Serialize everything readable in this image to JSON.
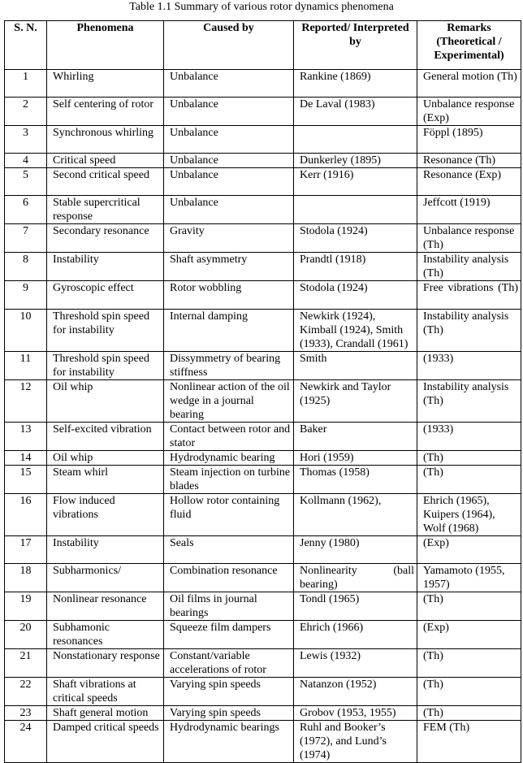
{
  "title": "Table 1.1 Summary of various rotor dynamics phenomena",
  "headers": [
    "S. N.",
    "Phenomena",
    "Caused by",
    "Reported/ Interpreted by",
    "Remarks (Theoretical / Experimental)"
  ],
  "rows": [
    [
      "1",
      "Whirling",
      "Unbalance",
      "Rankine (1869)",
      "General motion (Th)"
    ],
    [
      "2",
      "Self centering of rotor",
      "Unbalance",
      "De Laval (1983)",
      "Unbalance response (Exp)"
    ],
    [
      "3",
      "Synchronous whirling",
      "Unbalance",
      "",
      "Föppl (1895)"
    ],
    [
      "4",
      "Critical speed",
      "Unbalance",
      "Dunkerley (1895)",
      "Resonance (Th)"
    ],
    [
      "5",
      "Second critical speed",
      "Unbalance",
      "Kerr (1916)",
      "Resonance (Exp)"
    ],
    [
      "6",
      "Stable supercritical response",
      "Unbalance",
      "",
      "Jeffcott (1919)"
    ],
    [
      "7",
      "Secondary resonance",
      "Gravity",
      "Stodola (1924)",
      "Unbalance response (Th)"
    ],
    [
      "8",
      "Instability",
      "Shaft asymmetry",
      "Prandtl (1918)",
      "Instability analysis (Th)"
    ],
    [
      "9",
      "Gyroscopic effect",
      "Rotor wobbling",
      "Stodola (1924)",
      "Free vibrations (Th)"
    ],
    [
      "10",
      "Threshold spin speed for instability",
      "Internal damping",
      "Newkirk (1924), Kimball (1924), Smith (1933), Crandall (1961)",
      "Instability analysis (Th)"
    ],
    [
      "11",
      "Threshold spin speed for instability",
      "Dissymmetry of bearing stiffness",
      "Smith",
      "(1933)"
    ],
    [
      "12",
      "Oil whip",
      "Nonlinear action of the oil wedge in a journal bearing",
      "Newkirk and Taylor (1925)",
      "Instability analysis (Th)"
    ],
    [
      "13",
      "Self-excited vibration",
      "Contact between rotor and stator",
      "Baker",
      "(1933)"
    ],
    [
      "14",
      "Oil whip",
      "Hydrodynamic bearing",
      "Hori (1959)",
      "(Th)"
    ],
    [
      "15",
      "Steam whirl",
      "Steam injection on turbine blades",
      "Thomas (1958)",
      "(Th)"
    ],
    [
      "16",
      "Flow induced vibrations",
      "Hollow rotor containing fluid",
      "Kollmann (1962),",
      "Ehrich (1965), Kuipers (1964), Wolf (1968)"
    ],
    [
      "17",
      "Instability",
      "Seals",
      "Jenny (1980)",
      "(Exp)"
    ],
    [
      "18",
      "Subharmonics/",
      "Combination resonance",
      "Nonlinearity (ball bearing)",
      "Yamamoto (1955, 1957)"
    ],
    [
      "19",
      "Nonlinear resonance",
      "Oil films in journal bearings",
      "Tondl (1965)",
      "(Th)"
    ],
    [
      "20",
      "Subhamonic resonances",
      "Squeeze film dampers",
      "Ehrich (1966)",
      "(Exp)"
    ],
    [
      "21",
      "Nonstationary response",
      "Constant/variable accelerations of rotor",
      "Lewis (1932)",
      "(Th)"
    ],
    [
      "22",
      "Shaft vibrations at critical speeds",
      "Varying spin speeds",
      "Natanzon (1952)",
      "(Th)"
    ],
    [
      "23",
      "Shaft general motion",
      "Varying spin speeds",
      "Grobov (1953, 1955)",
      "(Th)"
    ],
    [
      "24",
      "Damped critical speeds",
      "Hydrodynamic bearings",
      "Ruhl and Booker’s (1972), and Lund’s (1974)",
      "FEM (Th)"
    ]
  ]
}
